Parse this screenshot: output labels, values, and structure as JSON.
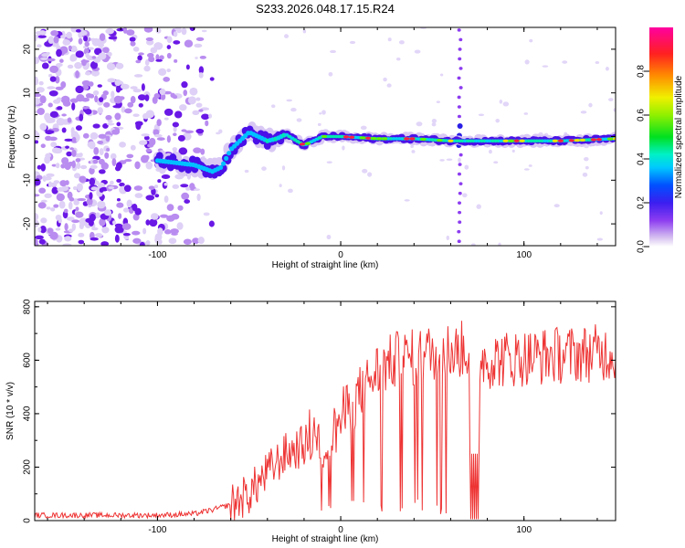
{
  "figure": {
    "title": "S233.2026.048.17.15.R24"
  },
  "colormap_legend": {
    "label": "Normalized spectral amplitude",
    "range": [
      0.0,
      1.0
    ],
    "ticks": [
      0.0,
      0.2,
      0.4,
      0.6,
      0.8
    ],
    "tick_labels": [
      "0.0",
      "0.2",
      "0.4",
      "0.6",
      "0.8"
    ]
  },
  "chart_data": [
    {
      "type": "heatmap",
      "title": "S233.2026.048.17.15.R24",
      "xlabel": "Height of straight line (km)",
      "ylabel": "Frequency (Hz)",
      "xlim": [
        -167,
        150
      ],
      "ylim": [
        -25,
        25
      ],
      "x_ticks": [
        -100,
        0,
        100
      ],
      "x_tick_labels": [
        "-100",
        "0",
        "100"
      ],
      "y_ticks": [
        -20,
        -10,
        0,
        10,
        20
      ],
      "y_tick_labels": [
        "-20",
        "-10",
        "0",
        "10",
        "20"
      ],
      "ridge": {
        "x": [
          -100,
          -90,
          -80,
          -70,
          -65,
          -60,
          -55,
          -50,
          -45,
          -40,
          -35,
          -30,
          -20,
          -10,
          0,
          20,
          40,
          60,
          65,
          80,
          100,
          120,
          150
        ],
        "freq": [
          -5.5,
          -6,
          -6.5,
          -8,
          -7,
          -3,
          -1,
          1,
          0,
          -1,
          -0.5,
          0.5,
          -2,
          0,
          0,
          -0.5,
          -0.5,
          -1,
          -1,
          -1,
          -1,
          -1,
          -0.5
        ]
      },
      "noise_region_x": [
        -167,
        -80
      ],
      "spike_x": 65
    },
    {
      "type": "line",
      "xlabel": "Height of straight line (km)",
      "ylabel": "SNR (10 * v/v)",
      "xlim": [
        -167,
        150
      ],
      "ylim": [
        0,
        820
      ],
      "x_ticks": [
        -100,
        0,
        100
      ],
      "x_tick_labels": [
        "-100",
        "0",
        "100"
      ],
      "y_ticks": [
        0,
        200,
        400,
        600,
        800
      ],
      "y_tick_labels": [
        "0",
        "200",
        "400",
        "600",
        "800"
      ],
      "series": [
        {
          "name": "SNR",
          "color": "#ee3333",
          "envelope_x": [
            -167,
            -100,
            -80,
            -70,
            -60,
            -50,
            -40,
            -30,
            -20,
            -15,
            -10,
            -5,
            0,
            10,
            20,
            30,
            40,
            50,
            60,
            70,
            80,
            100,
            120,
            150
          ],
          "envelope_y": [
            20,
            20,
            25,
            40,
            60,
            100,
            180,
            250,
            280,
            330,
            260,
            310,
            380,
            470,
            560,
            600,
            610,
            630,
            640,
            640,
            600,
            610,
            620,
            630
          ]
        }
      ]
    }
  ]
}
